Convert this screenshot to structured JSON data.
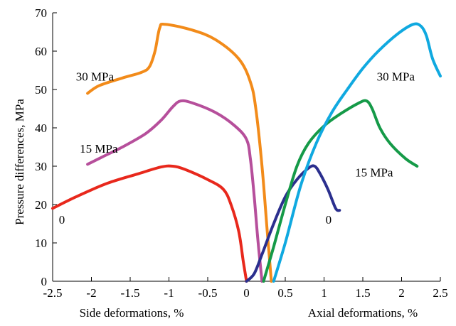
{
  "chart_data": {
    "type": "line",
    "title": "",
    "ylabel": "Pressure differences, MPa",
    "xlabel_left": "Side deformations, %",
    "xlabel_right": "Axial deformations, %",
    "xlim": [
      -2.5,
      2.5
    ],
    "ylim": [
      0,
      70
    ],
    "x_ticks": [
      -2.5,
      -2,
      -1.5,
      -1,
      -0.5,
      0,
      0.5,
      1,
      1.5,
      2,
      2.5
    ],
    "x_tick_labels": [
      "-2.5",
      "-2",
      "-1.5",
      "-1",
      "-0.5",
      "0",
      "0.5",
      "1",
      "1.5",
      "2",
      "2.5"
    ],
    "y_ticks": [
      0,
      10,
      20,
      30,
      40,
      50,
      60,
      70
    ],
    "y_tick_labels": [
      "0",
      "10",
      "20",
      "30",
      "40",
      "50",
      "60",
      "70"
    ],
    "grid": false,
    "series": [
      {
        "color": "#e8281c",
        "points": [
          [
            -2.5,
            19
          ],
          [
            -2.2,
            22
          ],
          [
            -1.8,
            25.5
          ],
          [
            -1.4,
            28
          ],
          [
            -1.1,
            29.8
          ],
          [
            -0.95,
            30
          ],
          [
            -0.8,
            29.2
          ],
          [
            -0.5,
            26.5
          ],
          [
            -0.3,
            24
          ],
          [
            -0.2,
            20
          ],
          [
            -0.1,
            13
          ],
          [
            -0.04,
            5
          ],
          [
            0,
            0
          ]
        ]
      },
      {
        "color": "#b64f9b",
        "points": [
          [
            -2.05,
            30.5
          ],
          [
            -1.85,
            32.5
          ],
          [
            -1.6,
            35
          ],
          [
            -1.3,
            38.5
          ],
          [
            -1.1,
            42
          ],
          [
            -0.95,
            45.5
          ],
          [
            -0.85,
            47
          ],
          [
            -0.7,
            46.5
          ],
          [
            -0.4,
            44
          ],
          [
            -0.15,
            40.5
          ],
          [
            0,
            37
          ],
          [
            0.05,
            32
          ],
          [
            0.1,
            22
          ],
          [
            0.15,
            10
          ],
          [
            0.2,
            0
          ]
        ]
      },
      {
        "color": "#f28b1a",
        "points": [
          [
            -2.05,
            49
          ],
          [
            -1.9,
            51
          ],
          [
            -1.6,
            53
          ],
          [
            -1.35,
            54.5
          ],
          [
            -1.25,
            56
          ],
          [
            -1.18,
            60
          ],
          [
            -1.12,
            66
          ],
          [
            -1.05,
            67
          ],
          [
            -0.7,
            65.5
          ],
          [
            -0.4,
            63
          ],
          [
            -0.1,
            58
          ],
          [
            0.05,
            52
          ],
          [
            0.12,
            45
          ],
          [
            0.2,
            30
          ],
          [
            0.26,
            15
          ],
          [
            0.32,
            0
          ]
        ]
      },
      {
        "color": "#2b2f8e",
        "points": [
          [
            0,
            0
          ],
          [
            0.1,
            2
          ],
          [
            0.2,
            7
          ],
          [
            0.35,
            15
          ],
          [
            0.5,
            22
          ],
          [
            0.65,
            26.5
          ],
          [
            0.8,
            29.5
          ],
          [
            0.88,
            30
          ],
          [
            0.95,
            28
          ],
          [
            1.05,
            24
          ],
          [
            1.15,
            19
          ],
          [
            1.2,
            18.5
          ]
        ]
      },
      {
        "color": "#159a48",
        "points": [
          [
            0.22,
            0
          ],
          [
            0.35,
            9
          ],
          [
            0.5,
            20
          ],
          [
            0.65,
            30
          ],
          [
            0.8,
            36
          ],
          [
            1.0,
            40.5
          ],
          [
            1.2,
            43.5
          ],
          [
            1.45,
            46.5
          ],
          [
            1.55,
            47
          ],
          [
            1.62,
            45
          ],
          [
            1.72,
            40
          ],
          [
            1.85,
            36
          ],
          [
            2.05,
            32
          ],
          [
            2.2,
            30
          ]
        ]
      },
      {
        "color": "#10a9e0",
        "points": [
          [
            0.35,
            0
          ],
          [
            0.5,
            10
          ],
          [
            0.7,
            25
          ],
          [
            0.9,
            36
          ],
          [
            1.1,
            44
          ],
          [
            1.3,
            50
          ],
          [
            1.5,
            55.5
          ],
          [
            1.7,
            60
          ],
          [
            1.95,
            64.5
          ],
          [
            2.15,
            67
          ],
          [
            2.25,
            66.5
          ],
          [
            2.32,
            64
          ],
          [
            2.4,
            58
          ],
          [
            2.5,
            53.5
          ]
        ]
      }
    ],
    "annotations": [
      {
        "text": "30 MPa",
        "x": -2.2,
        "y": 52.3,
        "anchor": "start"
      },
      {
        "text": "15 MPa",
        "x": -2.15,
        "y": 33.5,
        "anchor": "start"
      },
      {
        "text": "0",
        "x": -2.42,
        "y": 15,
        "anchor": "start"
      },
      {
        "text": "30 MPa",
        "x": 1.68,
        "y": 52.3,
        "anchor": "start"
      },
      {
        "text": "15 MPa",
        "x": 1.4,
        "y": 27.3,
        "anchor": "start"
      },
      {
        "text": "0",
        "x": 1.02,
        "y": 15,
        "anchor": "start"
      }
    ]
  }
}
